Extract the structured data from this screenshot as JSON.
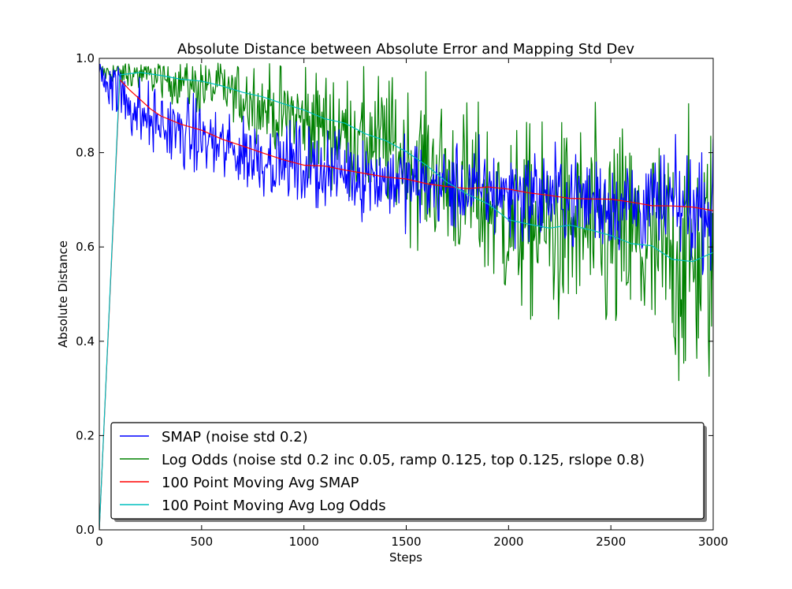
{
  "chart_data": {
    "type": "line",
    "title": "Absolute Distance between Absolute Error and Mapping Std Dev",
    "xlabel": "Steps",
    "ylabel": "Absolute Distance",
    "xlim": [
      0,
      3000
    ],
    "ylim": [
      0.0,
      1.0
    ],
    "xticks": [
      "0",
      "500",
      "1000",
      "1500",
      "2000",
      "2500",
      "3000"
    ],
    "yticks": [
      "0.0",
      "0.2",
      "0.4",
      "0.6",
      "0.8",
      "1.0"
    ],
    "grid": false,
    "legend_position": "lower-left",
    "series": [
      {
        "name": "SMAP (noise std 0.2)",
        "color": "#0000ff",
        "noisy": true,
        "noise_start": 0.035,
        "noise_end": 0.055,
        "points": [
          [
            0,
            0.97
          ],
          [
            50,
            0.96
          ],
          [
            100,
            0.93
          ],
          [
            200,
            0.88
          ],
          [
            300,
            0.86
          ],
          [
            400,
            0.84
          ],
          [
            500,
            0.83
          ],
          [
            600,
            0.81
          ],
          [
            700,
            0.8
          ],
          [
            800,
            0.79
          ],
          [
            900,
            0.78
          ],
          [
            1000,
            0.77
          ],
          [
            1200,
            0.76
          ],
          [
            1400,
            0.745
          ],
          [
            1600,
            0.73
          ],
          [
            1800,
            0.72
          ],
          [
            2000,
            0.715
          ],
          [
            2200,
            0.71
          ],
          [
            2400,
            0.7
          ],
          [
            2600,
            0.69
          ],
          [
            2800,
            0.685
          ],
          [
            3000,
            0.68
          ]
        ]
      },
      {
        "name": "Log Odds (noise std 0.2 inc 0.05, ramp 0.125, top 0.125, rslope 0.8)",
        "color": "#008000",
        "noisy": true,
        "noise_start": 0.01,
        "noise_end": 0.14,
        "points": [
          [
            0,
            0.97
          ],
          [
            100,
            0.97
          ],
          [
            200,
            0.965
          ],
          [
            300,
            0.96
          ],
          [
            400,
            0.95
          ],
          [
            500,
            0.94
          ],
          [
            600,
            0.93
          ],
          [
            700,
            0.92
          ],
          [
            800,
            0.9
          ],
          [
            900,
            0.88
          ],
          [
            1000,
            0.87
          ],
          [
            1100,
            0.86
          ],
          [
            1200,
            0.84
          ],
          [
            1300,
            0.83
          ],
          [
            1400,
            0.82
          ],
          [
            1500,
            0.79
          ],
          [
            1600,
            0.77
          ],
          [
            1700,
            0.74
          ],
          [
            1800,
            0.72
          ],
          [
            1900,
            0.69
          ],
          [
            2000,
            0.66
          ],
          [
            2100,
            0.65
          ],
          [
            2200,
            0.64
          ],
          [
            2300,
            0.64
          ],
          [
            2400,
            0.63
          ],
          [
            2500,
            0.62
          ],
          [
            2600,
            0.61
          ],
          [
            2700,
            0.58
          ],
          [
            2800,
            0.575
          ],
          [
            2900,
            0.57
          ],
          [
            3000,
            0.59
          ]
        ]
      },
      {
        "name": "100 Point Moving Avg SMAP",
        "color": "#ff0000",
        "noisy": false,
        "points": [
          [
            0,
            0.0
          ],
          [
            100,
            0.955
          ],
          [
            150,
            0.935
          ],
          [
            200,
            0.91
          ],
          [
            250,
            0.895
          ],
          [
            300,
            0.875
          ],
          [
            400,
            0.86
          ],
          [
            500,
            0.845
          ],
          [
            600,
            0.83
          ],
          [
            700,
            0.815
          ],
          [
            800,
            0.8
          ],
          [
            900,
            0.785
          ],
          [
            1000,
            0.775
          ],
          [
            1100,
            0.77
          ],
          [
            1200,
            0.765
          ],
          [
            1300,
            0.755
          ],
          [
            1400,
            0.75
          ],
          [
            1500,
            0.745
          ],
          [
            1600,
            0.735
          ],
          [
            1700,
            0.73
          ],
          [
            1800,
            0.725
          ],
          [
            1900,
            0.725
          ],
          [
            2000,
            0.72
          ],
          [
            2100,
            0.715
          ],
          [
            2200,
            0.71
          ],
          [
            2300,
            0.705
          ],
          [
            2400,
            0.7
          ],
          [
            2500,
            0.7
          ],
          [
            2600,
            0.695
          ],
          [
            2700,
            0.69
          ],
          [
            2800,
            0.685
          ],
          [
            2900,
            0.685
          ],
          [
            3000,
            0.68
          ]
        ]
      },
      {
        "name": "100 Point Moving Avg Log Odds",
        "color": "#00bfbf",
        "noisy": false,
        "points": [
          [
            0,
            0.0
          ],
          [
            100,
            0.965
          ],
          [
            200,
            0.97
          ],
          [
            300,
            0.965
          ],
          [
            400,
            0.955
          ],
          [
            500,
            0.95
          ],
          [
            600,
            0.94
          ],
          [
            700,
            0.93
          ],
          [
            800,
            0.92
          ],
          [
            900,
            0.905
          ],
          [
            1000,
            0.89
          ],
          [
            1100,
            0.875
          ],
          [
            1200,
            0.86
          ],
          [
            1300,
            0.84
          ],
          [
            1400,
            0.825
          ],
          [
            1500,
            0.8
          ],
          [
            1600,
            0.775
          ],
          [
            1700,
            0.74
          ],
          [
            1800,
            0.71
          ],
          [
            1900,
            0.69
          ],
          [
            2000,
            0.66
          ],
          [
            2100,
            0.65
          ],
          [
            2200,
            0.64
          ],
          [
            2300,
            0.645
          ],
          [
            2400,
            0.635
          ],
          [
            2500,
            0.625
          ],
          [
            2600,
            0.61
          ],
          [
            2700,
            0.6
          ],
          [
            2800,
            0.575
          ],
          [
            2900,
            0.57
          ],
          [
            3000,
            0.59
          ]
        ]
      }
    ]
  }
}
